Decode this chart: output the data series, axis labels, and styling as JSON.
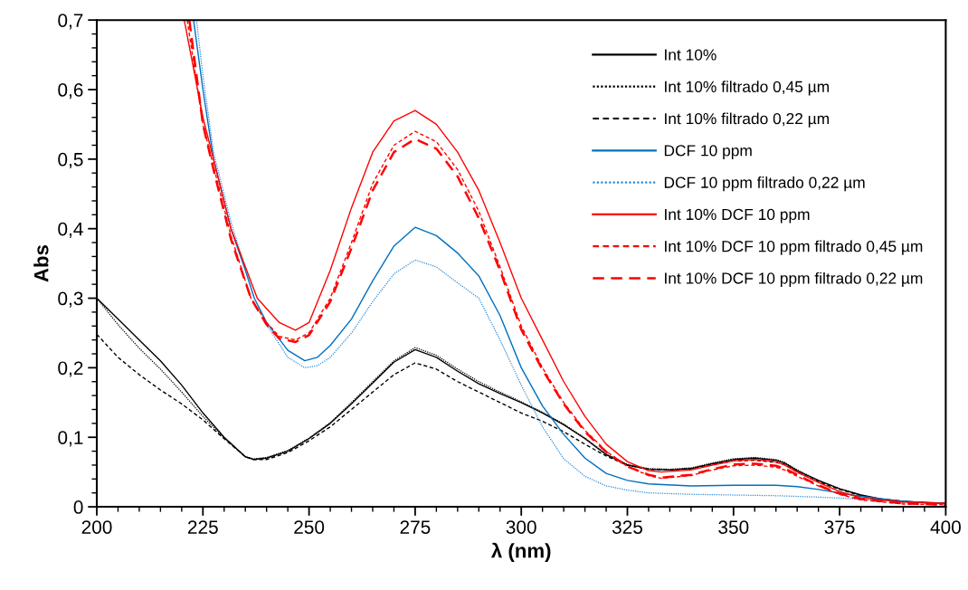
{
  "chart_data": {
    "type": "line",
    "xlabel": "λ (nm)",
    "ylabel": "Abs",
    "xlim": [
      200,
      400
    ],
    "xticks": [
      200,
      225,
      250,
      275,
      300,
      325,
      350,
      375,
      400
    ],
    "ylim": [
      0,
      0.7
    ],
    "yticks": [
      {
        "value": 0,
        "label": "0"
      },
      {
        "value": 0.1,
        "label": "0,1"
      },
      {
        "value": 0.2,
        "label": "0,2"
      },
      {
        "value": 0.3,
        "label": "0,3"
      },
      {
        "value": 0.4,
        "label": "0,4"
      },
      {
        "value": 0.5,
        "label": "0,5"
      },
      {
        "value": 0.6,
        "label": "0,6"
      },
      {
        "value": 0.7,
        "label": "0,7"
      }
    ],
    "grid": false,
    "legend": "top right",
    "marker": "none",
    "series": [
      {
        "name": "Int 10%",
        "color": "#000000",
        "line_style": "solid",
        "x": [
          200,
          205,
          210,
          215,
          220,
          225,
          230,
          235,
          237,
          240,
          245,
          250,
          255,
          260,
          265,
          270,
          275,
          280,
          285,
          290,
          295,
          300,
          305,
          310,
          315,
          320,
          325,
          330,
          335,
          340,
          345,
          350,
          355,
          360,
          362,
          365,
          370,
          375,
          380,
          385,
          390,
          395,
          400
        ],
        "values": [
          0.3,
          0.27,
          0.24,
          0.21,
          0.175,
          0.135,
          0.1,
          0.072,
          0.068,
          0.07,
          0.08,
          0.098,
          0.12,
          0.148,
          0.178,
          0.208,
          0.226,
          0.215,
          0.195,
          0.177,
          0.163,
          0.15,
          0.135,
          0.118,
          0.098,
          0.075,
          0.06,
          0.054,
          0.053,
          0.055,
          0.062,
          0.068,
          0.07,
          0.067,
          0.063,
          0.052,
          0.038,
          0.026,
          0.017,
          0.011,
          0.008,
          0.006,
          0.005
        ]
      },
      {
        "name": "Int 10% filtrado 0,45 µm",
        "color": "#000000",
        "line_style": "dotted",
        "x": [
          200,
          205,
          210,
          215,
          220,
          225,
          230,
          235,
          237,
          240,
          245,
          250,
          255,
          260,
          265,
          270,
          275,
          280,
          285,
          290,
          295,
          300,
          305,
          310,
          315,
          320,
          325,
          330,
          335,
          340,
          345,
          350,
          355,
          360,
          362,
          365,
          370,
          375,
          380,
          385,
          390,
          395,
          400
        ],
        "values": [
          0.3,
          0.262,
          0.228,
          0.198,
          0.165,
          0.13,
          0.099,
          0.072,
          0.069,
          0.071,
          0.081,
          0.099,
          0.121,
          0.15,
          0.18,
          0.21,
          0.229,
          0.218,
          0.198,
          0.18,
          0.165,
          0.151,
          0.136,
          0.119,
          0.099,
          0.076,
          0.061,
          0.055,
          0.054,
          0.056,
          0.063,
          0.069,
          0.071,
          0.068,
          0.064,
          0.053,
          0.038,
          0.026,
          0.017,
          0.011,
          0.008,
          0.006,
          0.005
        ]
      },
      {
        "name": "Int 10% filtrado 0,22 µm",
        "color": "#000000",
        "line_style": "dashed",
        "x": [
          200,
          205,
          210,
          215,
          220,
          225,
          230,
          235,
          237,
          240,
          245,
          250,
          255,
          260,
          265,
          270,
          275,
          280,
          285,
          290,
          295,
          300,
          305,
          310,
          315,
          320,
          325,
          330,
          335,
          340,
          345,
          350,
          355,
          360,
          362,
          365,
          370,
          375,
          380,
          385,
          390,
          395,
          400
        ],
        "values": [
          0.248,
          0.215,
          0.19,
          0.168,
          0.148,
          0.125,
          0.098,
          0.072,
          0.068,
          0.068,
          0.078,
          0.095,
          0.115,
          0.14,
          0.165,
          0.19,
          0.207,
          0.198,
          0.18,
          0.165,
          0.15,
          0.135,
          0.123,
          0.108,
          0.09,
          0.073,
          0.06,
          0.054,
          0.053,
          0.055,
          0.061,
          0.066,
          0.067,
          0.064,
          0.061,
          0.05,
          0.036,
          0.025,
          0.016,
          0.01,
          0.007,
          0.006,
          0.005
        ]
      },
      {
        "name": "DCF 10 ppm",
        "color": "#0070c0",
        "line_style": "solid",
        "x": [
          222.8,
          225,
          227.5,
          231.6,
          235,
          237.1,
          240,
          245,
          249,
          252,
          255,
          260,
          265,
          270,
          275,
          280,
          285,
          290,
          295,
          300,
          305,
          310,
          315,
          320,
          325,
          330,
          340,
          350,
          360,
          365,
          370,
          375,
          380,
          390,
          400
        ],
        "values": [
          0.7,
          0.6,
          0.5,
          0.4,
          0.34,
          0.3,
          0.265,
          0.225,
          0.21,
          0.215,
          0.232,
          0.27,
          0.325,
          0.375,
          0.402,
          0.39,
          0.365,
          0.332,
          0.275,
          0.2,
          0.145,
          0.104,
          0.07,
          0.048,
          0.038,
          0.033,
          0.03,
          0.031,
          0.031,
          0.029,
          0.025,
          0.02,
          0.015,
          0.008,
          0.005
        ]
      },
      {
        "name": "DCF 10 ppm filtrado 0,22 µm",
        "color": "#2e8bd6",
        "line_style": "dotted",
        "x": [
          223.5,
          225,
          227.5,
          231.6,
          237.1,
          240,
          245,
          249,
          252,
          255,
          260,
          265,
          270,
          275,
          280,
          285,
          290,
          295,
          300,
          305,
          310,
          315,
          320,
          325,
          330,
          340,
          350,
          360,
          370,
          380,
          390,
          400
        ],
        "values": [
          0.7,
          0.62,
          0.51,
          0.41,
          0.3,
          0.262,
          0.215,
          0.2,
          0.203,
          0.215,
          0.25,
          0.295,
          0.335,
          0.355,
          0.345,
          0.322,
          0.3,
          0.24,
          0.175,
          0.115,
          0.069,
          0.044,
          0.03,
          0.024,
          0.02,
          0.018,
          0.017,
          0.016,
          0.014,
          0.011,
          0.007,
          0.004
        ]
      },
      {
        "name": "Int 10% DCF 10 ppm",
        "color": "#ff0000",
        "line_style": "solid",
        "x": [
          220.6,
          225,
          227.5,
          231.6,
          237.8,
          240,
          243,
          246.8,
          250,
          255,
          260,
          265,
          270,
          275,
          280,
          285,
          290,
          295,
          300,
          305,
          310,
          315,
          320,
          325,
          330,
          333,
          340,
          345,
          350,
          355,
          360,
          362,
          365,
          370,
          375,
          380,
          390,
          400
        ],
        "values": [
          0.7,
          0.56,
          0.5,
          0.4,
          0.3,
          0.285,
          0.265,
          0.254,
          0.265,
          0.34,
          0.43,
          0.51,
          0.555,
          0.57,
          0.55,
          0.51,
          0.455,
          0.38,
          0.3,
          0.24,
          0.18,
          0.13,
          0.09,
          0.065,
          0.052,
          0.05,
          0.053,
          0.06,
          0.066,
          0.068,
          0.065,
          0.06,
          0.05,
          0.035,
          0.022,
          0.013,
          0.007,
          0.005
        ]
      },
      {
        "name": "Int 10% DCF 10 ppm filtrado 0,45 µm",
        "color": "#ff0000",
        "line_style": "dashed",
        "x": [
          221.3,
          225,
          227.5,
          231.6,
          236.3,
          240,
          243,
          246.8,
          250,
          255,
          260,
          265,
          270,
          275,
          280,
          285,
          290,
          295,
          300,
          305,
          310,
          315,
          320,
          325,
          330,
          333,
          340,
          345,
          350,
          355,
          360,
          362,
          365,
          370,
          375,
          380,
          390,
          400
        ],
        "values": [
          0.7,
          0.55,
          0.49,
          0.39,
          0.3,
          0.265,
          0.245,
          0.24,
          0.25,
          0.3,
          0.38,
          0.465,
          0.52,
          0.54,
          0.525,
          0.485,
          0.425,
          0.345,
          0.26,
          0.2,
          0.15,
          0.11,
          0.08,
          0.058,
          0.045,
          0.041,
          0.045,
          0.053,
          0.059,
          0.06,
          0.057,
          0.053,
          0.044,
          0.03,
          0.018,
          0.01,
          0.004,
          0.003
        ]
      },
      {
        "name": "Int 10% DCF 10 ppm filtrado 0,22 µm",
        "color": "#ff0000",
        "line_style": "dashed",
        "x": [
          221.8,
          225,
          227.5,
          231.6,
          236.3,
          240,
          243,
          246.8,
          250,
          255,
          260,
          265,
          270,
          275,
          280,
          285,
          290,
          295,
          300,
          305,
          310,
          315,
          320,
          325,
          330,
          333,
          340,
          345,
          350,
          355,
          360,
          362,
          365,
          370,
          375,
          380,
          390,
          400
        ],
        "values": [
          0.7,
          0.55,
          0.485,
          0.385,
          0.3,
          0.262,
          0.242,
          0.237,
          0.247,
          0.295,
          0.372,
          0.455,
          0.51,
          0.529,
          0.515,
          0.475,
          0.415,
          0.34,
          0.255,
          0.197,
          0.148,
          0.108,
          0.079,
          0.058,
          0.046,
          0.042,
          0.046,
          0.054,
          0.061,
          0.062,
          0.059,
          0.055,
          0.046,
          0.031,
          0.019,
          0.011,
          0.005,
          0.003
        ]
      }
    ]
  }
}
